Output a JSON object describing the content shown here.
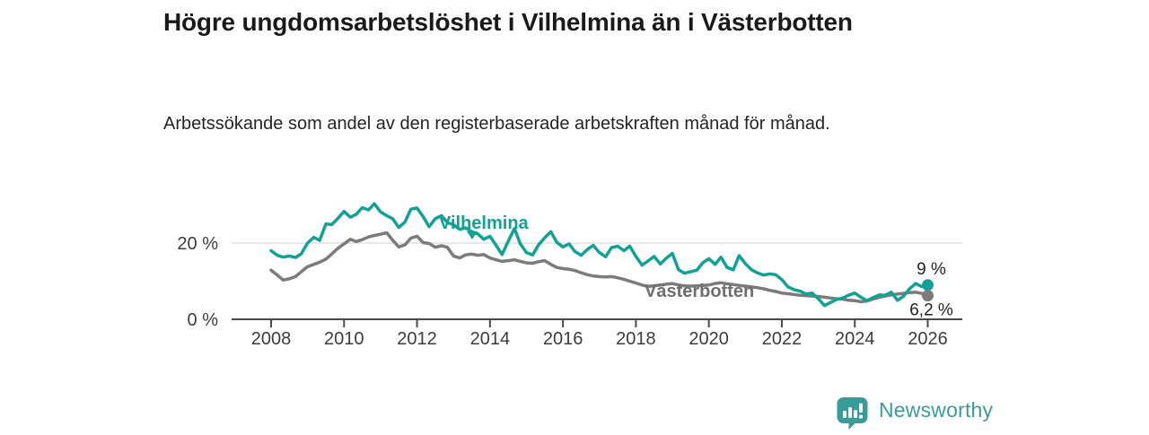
{
  "header": {
    "title": "Högre ungdomsarbetslöshet i Vilhelmina än i Västerbotten",
    "subtitle": "Arbetssökande som andel av den registerbaserade arbetskraften månad för månad."
  },
  "footer": {
    "brand": "Newsworthy",
    "logo_icon": "bar-chart-speech-bubble-icon"
  },
  "colors": {
    "vilhelmina_teal": "#12a196",
    "vasterbotten_gray": "#7b7b7b",
    "label_gray": "#6e6e6e",
    "axis_text": "#3c3c3c",
    "axis_line": "#4a4a4a",
    "gridline": "#d9d9d9",
    "end_label_text": "#1f1f1f",
    "brand_teal": "#3a9c99"
  },
  "chart_data": {
    "type": "line",
    "title": "Högre ungdomsarbetslöshet i Vilhelmina än i Västerbotten",
    "xlabel": "",
    "ylabel": "Arbetssökande som andel av den registerbaserade arbetskraften",
    "grid": "horizontal-20-only",
    "legend_position": "inline-labels-on-lines",
    "xlim": [
      2006.9,
      2027.0
    ],
    "ylim": [
      0,
      32
    ],
    "x_ticks": [
      2008,
      2010,
      2012,
      2014,
      2016,
      2018,
      2020,
      2022,
      2024,
      2026
    ],
    "y_ticks": [
      {
        "value": 0,
        "label": "0 %"
      },
      {
        "value": 20,
        "label": "20 %"
      }
    ],
    "x": [
      2008.0,
      2008.17,
      2008.33,
      2008.5,
      2008.67,
      2008.83,
      2009.0,
      2009.17,
      2009.33,
      2009.5,
      2009.67,
      2009.83,
      2010.0,
      2010.17,
      2010.33,
      2010.5,
      2010.67,
      2010.83,
      2011.0,
      2011.17,
      2011.33,
      2011.5,
      2011.67,
      2011.83,
      2012.0,
      2012.17,
      2012.33,
      2012.5,
      2012.67,
      2012.83,
      2013.0,
      2013.17,
      2013.33,
      2013.5,
      2013.67,
      2013.83,
      2014.0,
      2014.17,
      2014.33,
      2014.5,
      2014.67,
      2014.83,
      2015.0,
      2015.17,
      2015.33,
      2015.5,
      2015.67,
      2015.83,
      2016.0,
      2016.17,
      2016.33,
      2016.5,
      2016.67,
      2016.83,
      2017.0,
      2017.17,
      2017.33,
      2017.5,
      2017.67,
      2017.83,
      2018.0,
      2018.17,
      2018.33,
      2018.5,
      2018.67,
      2018.83,
      2019.0,
      2019.17,
      2019.33,
      2019.5,
      2019.67,
      2019.83,
      2020.0,
      2020.17,
      2020.33,
      2020.5,
      2020.67,
      2020.83,
      2021.0,
      2021.17,
      2021.33,
      2021.5,
      2021.67,
      2021.83,
      2022.0,
      2022.17,
      2022.33,
      2022.5,
      2022.67,
      2022.83,
      2023.0,
      2023.17,
      2023.33,
      2023.5,
      2023.67,
      2023.83,
      2024.0,
      2024.17,
      2024.33,
      2024.5,
      2024.67,
      2024.83,
      2025.0,
      2025.17,
      2025.33,
      2025.5,
      2025.67,
      2025.83,
      2026.0
    ],
    "series": [
      {
        "name": "Vilhelmina",
        "inline_label": "Vilhelmina",
        "inline_marker": "triangle-down",
        "color": "#12a196",
        "end_label": "9 %",
        "values": [
          18.0,
          16.8,
          16.3,
          16.6,
          16.2,
          17.2,
          20.0,
          21.5,
          20.7,
          25.0,
          24.9,
          26.5,
          28.3,
          26.8,
          27.5,
          29.3,
          28.7,
          30.3,
          28.2,
          27.2,
          26.4,
          24.1,
          25.5,
          28.9,
          29.2,
          26.9,
          24.3,
          26.4,
          27.2,
          25.4,
          24.8,
          23.6,
          24.0,
          23.0,
          22.4,
          21.0,
          21.8,
          19.4,
          17.0,
          20.5,
          23.8,
          19.8,
          17.5,
          16.9,
          19.5,
          21.4,
          23.0,
          20.2,
          19.0,
          19.8,
          17.8,
          16.8,
          18.3,
          19.4,
          17.5,
          16.4,
          18.8,
          19.2,
          18.0,
          19.2,
          16.5,
          14.2,
          15.3,
          16.5,
          14.5,
          16.0,
          17.3,
          13.0,
          12.1,
          12.5,
          12.9,
          14.8,
          15.9,
          14.4,
          16.3,
          13.6,
          13.0,
          16.7,
          14.6,
          13.0,
          12.2,
          11.6,
          11.9,
          11.7,
          10.4,
          8.5,
          7.8,
          7.4,
          6.6,
          6.9,
          5.4,
          3.6,
          4.4,
          5.2,
          5.6,
          6.3,
          6.9,
          5.8,
          4.9,
          5.7,
          6.4,
          6.3,
          7.1,
          5.0,
          6.0,
          8.0,
          9.4,
          8.6,
          9.0
        ]
      },
      {
        "name": "Västerbotten",
        "inline_label": "Västerbotten",
        "inline_marker": "none",
        "color": "#7b7b7b",
        "end_label": "6,2 %",
        "values": [
          12.9,
          11.6,
          10.3,
          10.6,
          11.2,
          12.5,
          13.8,
          14.4,
          15.0,
          15.8,
          17.2,
          18.6,
          19.8,
          21.0,
          20.4,
          20.9,
          21.6,
          22.0,
          22.3,
          22.7,
          20.8,
          19.0,
          19.5,
          21.3,
          21.8,
          20.1,
          19.9,
          18.9,
          19.3,
          18.9,
          16.6,
          16.1,
          16.9,
          17.1,
          16.8,
          17.0,
          16.1,
          15.6,
          15.2,
          15.4,
          15.6,
          15.2,
          14.8,
          14.7,
          15.1,
          15.4,
          14.4,
          13.6,
          13.3,
          13.1,
          12.8,
          12.2,
          11.7,
          11.4,
          11.2,
          11.1,
          11.2,
          10.9,
          10.5,
          10.0,
          9.5,
          9.0,
          8.6,
          8.8,
          9.0,
          9.2,
          9.4,
          9.0,
          8.8,
          8.7,
          8.8,
          8.9,
          9.0,
          9.4,
          9.6,
          9.3,
          9.1,
          8.9,
          8.7,
          8.5,
          8.3,
          8.0,
          7.6,
          7.3,
          6.9,
          6.7,
          6.5,
          6.3,
          6.2,
          6.1,
          6.0,
          5.8,
          5.6,
          5.4,
          5.3,
          5.0,
          4.9,
          4.6,
          4.8,
          5.3,
          5.8,
          6.1,
          6.4,
          6.6,
          6.8,
          7.0,
          7.1,
          6.8,
          6.2
        ]
      }
    ]
  }
}
